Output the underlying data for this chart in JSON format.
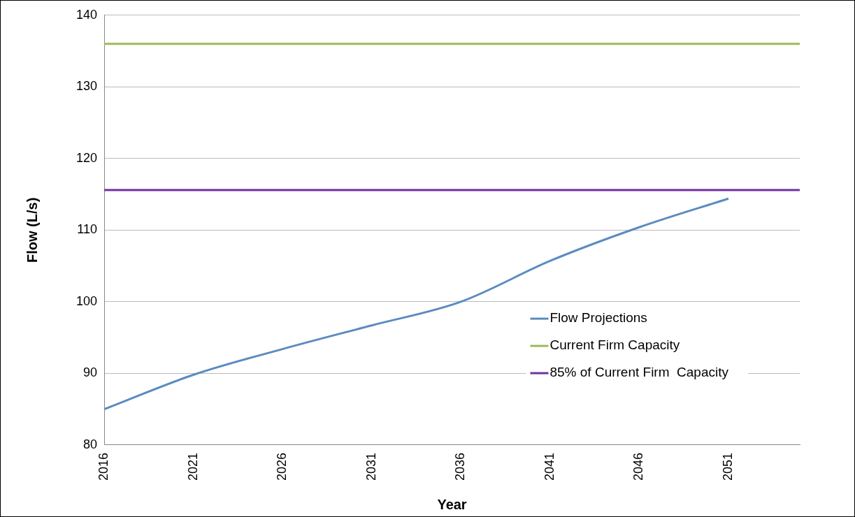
{
  "chart_data": {
    "type": "line",
    "xlabel": "Year",
    "ylabel": "Flow (L/s)",
    "xlim": [
      2016,
      2055
    ],
    "xticks": [
      2016,
      2021,
      2026,
      2031,
      2036,
      2041,
      2046,
      2051
    ],
    "ylim": [
      80,
      140
    ],
    "yticks": [
      80,
      90,
      100,
      110,
      120,
      130,
      140
    ],
    "grid": "y",
    "legend": "right",
    "marker": "none",
    "line_style": "solid",
    "series": [
      {
        "name": "Flow Projections",
        "color": "#5b8bc0",
        "x": [
          2016,
          2021,
          2026,
          2031,
          2036,
          2041,
          2046,
          2051
        ],
        "values": [
          85,
          89.8,
          93.4,
          96.7,
          100,
          105.7,
          110.4,
          114.4
        ]
      },
      {
        "name": "Current Firm Capacity",
        "color": "#9bbb59",
        "x": [
          2016,
          2055
        ],
        "values": [
          136,
          136
        ]
      },
      {
        "name": "85% of Current Firm  Capacity",
        "color": "#7030a0",
        "x": [
          2016,
          2055
        ],
        "values": [
          115.6,
          115.6
        ]
      }
    ]
  }
}
